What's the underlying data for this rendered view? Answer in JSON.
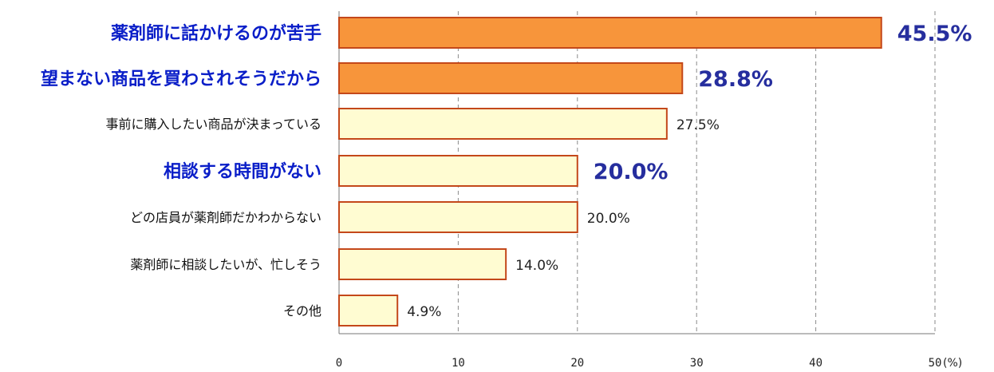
{
  "chart_data": {
    "type": "bar",
    "orientation": "horizontal",
    "categories": [
      "薬剤師に話かけるのが苦手",
      "望まない商品を買わされそうだから",
      "事前に購入したい商品が決まっている",
      "相談する時間がない",
      "どの店員が薬剤師だかわからない",
      "薬剤師に相談したいが、忙しそう",
      "その他"
    ],
    "values": [
      45.5,
      28.8,
      27.5,
      20.0,
      20.0,
      14.0,
      4.9
    ],
    "value_labels": [
      "45.5%",
      "28.8%",
      "27.5%",
      "20.0%",
      "20.0%",
      "14.0%",
      "4.9%"
    ],
    "highlight": [
      true,
      true,
      false,
      true,
      false,
      false,
      false
    ],
    "bar_fill": [
      true,
      true,
      false,
      false,
      false,
      false,
      false
    ],
    "xlim": [
      0,
      50
    ],
    "xticks": [
      "0",
      "10",
      "20",
      "30",
      "40",
      "50"
    ],
    "unit_label": "(%)",
    "grid": "vertical dashed",
    "colors": {
      "bar_orange": "#F7953B",
      "bar_light": "#FFFCD2",
      "bar_stroke": "#C4481A",
      "highlight_text": "#0A1EC8",
      "highlight_value": "#262E9E",
      "normal_text": "#111111",
      "grid": "#8A8A8A",
      "axis": "#777777"
    }
  }
}
